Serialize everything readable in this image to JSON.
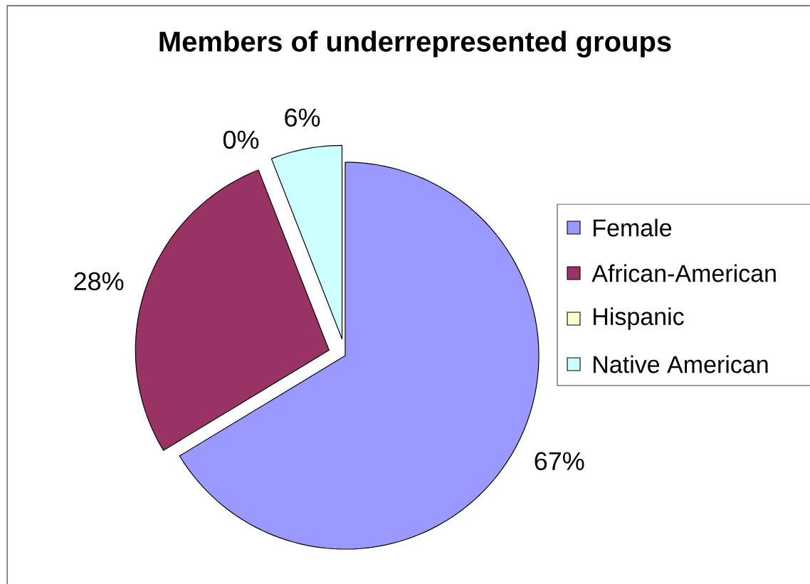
{
  "chart_data": {
    "type": "pie",
    "title": "Members of underrepresented groups",
    "categories": [
      "Female",
      "African-American",
      "Hispanic",
      "Native American"
    ],
    "values": [
      67,
      28,
      0,
      6
    ],
    "colors": [
      "#9999ff",
      "#993366",
      "#ffffcc",
      "#ccffff"
    ],
    "value_labels": [
      "67%",
      "28%",
      "0%",
      "6%"
    ],
    "legend": "right"
  }
}
